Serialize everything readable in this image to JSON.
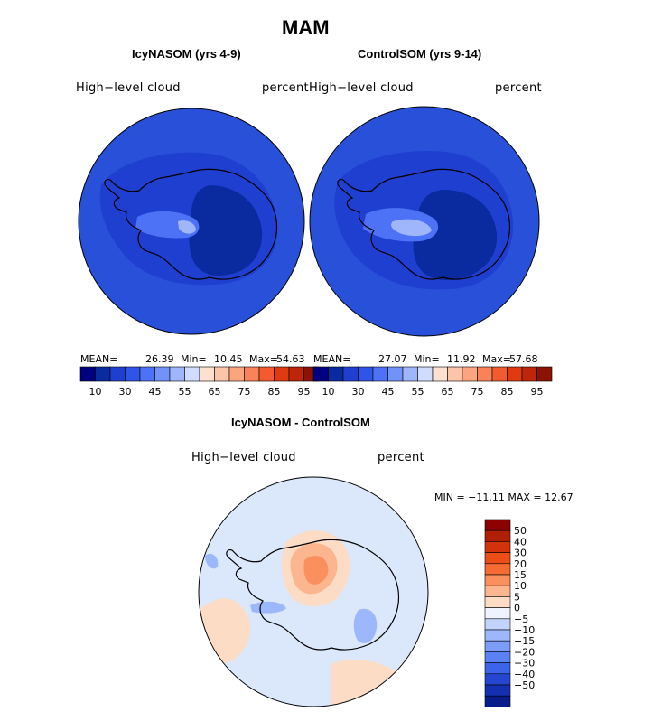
{
  "title": "MAM",
  "colors": {
    "coast": "#000000",
    "blue_levels": [
      "#000080",
      "#0a2aa0",
      "#1f3fd0",
      "#2f55e8",
      "#4d72f5",
      "#7193f8",
      "#9fb6fb",
      "#cfdcfe"
    ],
    "red_levels": [
      "#fde0cf",
      "#fcc4a8",
      "#fba57f",
      "#fa8259",
      "#f25a2f",
      "#df3a10",
      "#bd2608",
      "#8c1204"
    ],
    "diff_levels": [
      "#8b0000",
      "#b01e04",
      "#d4320a",
      "#ec4c16",
      "#f66a34",
      "#f9905e",
      "#fbb690",
      "#fcdcc4",
      "#eef3ff",
      "#c2d3fc",
      "#9db7fb",
      "#7b9df8",
      "#5a82f4",
      "#3c64ea",
      "#2446d0",
      "#1230b0",
      "#061c8a"
    ],
    "map_base": "#2850d8",
    "diff_base": "#dbe8fb"
  },
  "left_panel": {
    "subtitle": "IcyNASOM (yrs 4-9)",
    "variable": "High−level cloud",
    "units": "percent",
    "stats": {
      "mean_label": "MEAN=",
      "mean": "26.39",
      "min_label": "Min=",
      "min": "10.45",
      "max_label": "Max=",
      "max": "54.63"
    }
  },
  "right_panel": {
    "subtitle": "ControlSOM (yrs 9-14)",
    "variable": "High−level cloud",
    "units": "percent",
    "stats": {
      "mean_label": "MEAN=",
      "mean": "27.07",
      "min_label": "Min=",
      "min": "11.92",
      "max_label": "Max=",
      "max": "57.68"
    }
  },
  "colorbar_ticks": [
    "10",
    "30",
    "45",
    "55",
    "65",
    "75",
    "85",
    "95"
  ],
  "diff_panel": {
    "subtitle": "IcyNASOM - ControlSOM",
    "variable": "High−level cloud",
    "units": "percent",
    "minmax_text": "MIN = −11.11 MAX =  12.67",
    "colorbar_ticks": [
      "50",
      "40",
      "30",
      "20",
      "15",
      "10",
      "5",
      "0",
      "−5",
      "−10",
      "−15",
      "−20",
      "−30",
      "−40",
      "−50"
    ]
  }
}
